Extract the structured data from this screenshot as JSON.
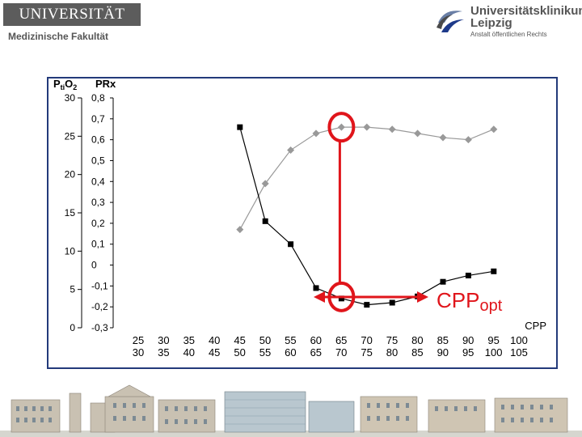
{
  "header": {
    "university": "UNIVERSITÄT LEIPZIG",
    "faculty": "Medizinische Fakultät",
    "clinic_name": "Universitätsklinikum",
    "clinic_city": "Leipzig",
    "clinic_sub": "Anstalt öffentlichen Rechts"
  },
  "colors": {
    "frame": "#233a7a",
    "prx_series": "#999999",
    "pto2_series": "#000000",
    "highlight": "#e0151b"
  },
  "chart_data": {
    "type": "line",
    "y_axis_labels": {
      "left_prefix": "P",
      "left_sub": "ti",
      "left_mid": "O",
      "left_sub2": "2",
      "right": "PRx"
    },
    "y_left_ticks": [
      "30",
      "25",
      "20",
      "15",
      "10",
      "5",
      "0"
    ],
    "y_left_range": [
      0,
      30
    ],
    "y_right_ticks": [
      "0,8",
      "0,7",
      "0,6",
      "0,5",
      "0,4",
      "0,3",
      "0,2",
      "0,1",
      "0",
      "-0,1",
      "-0,2",
      "-0,3"
    ],
    "y_right_range": [
      -0.3,
      0.8
    ],
    "x_ticks_top": [
      "25",
      "30",
      "35",
      "40",
      "45",
      "50",
      "55",
      "60",
      "65",
      "70",
      "75",
      "80",
      "85",
      "90",
      "95",
      "100"
    ],
    "x_ticks_bottom": [
      "30",
      "35",
      "40",
      "45",
      "50",
      "55",
      "60",
      "65",
      "70",
      "75",
      "80",
      "85",
      "90",
      "95",
      "100",
      "105"
    ],
    "x_label": "CPP",
    "annotation": {
      "main": "CPP",
      "sub": "opt"
    },
    "series": [
      {
        "axis": "right",
        "marker": "diamond",
        "values": [
          null,
          null,
          0.17,
          0.39,
          0.55,
          0.63,
          0.66,
          0.66,
          0.65,
          0.63,
          0.61,
          0.6,
          0.65,
          null,
          null,
          null
        ]
      },
      {
        "axis": "right",
        "marker": "square",
        "values": [
          null,
          null,
          0.66,
          0.21,
          0.1,
          -0.11,
          -0.16,
          -0.19,
          -0.18,
          -0.15,
          -0.08,
          -0.05,
          -0.03,
          null,
          null,
          null
        ]
      }
    ],
    "optimum_index": 6,
    "grid": false
  }
}
